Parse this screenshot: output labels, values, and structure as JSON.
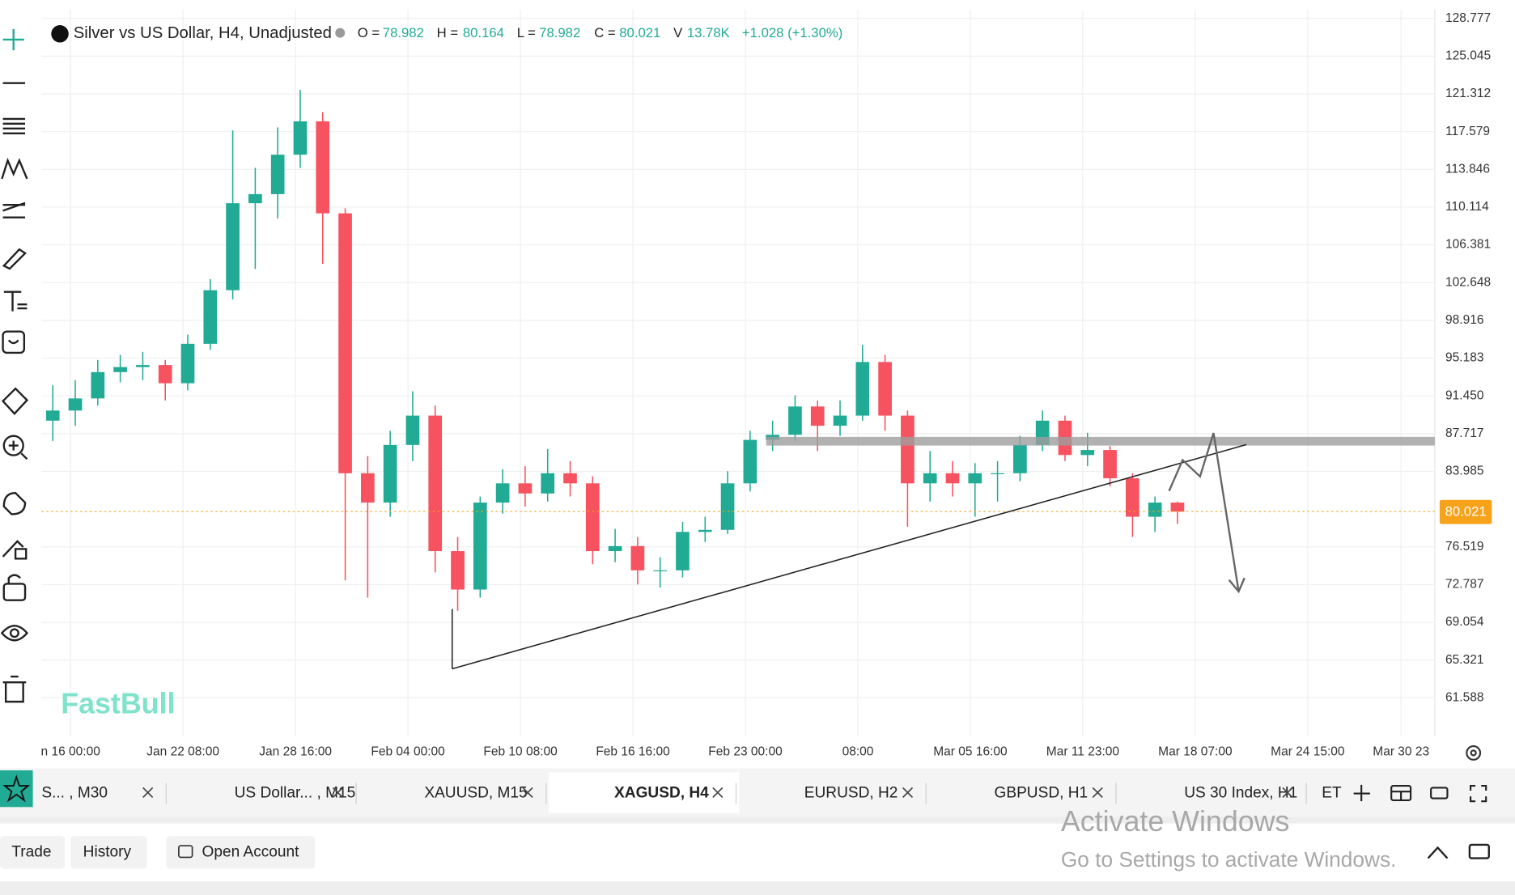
{
  "header": {
    "title": "Silver vs US Dollar, H4, Unadjusted",
    "open_label": "O =",
    "open": 78.982,
    "high_label": "H =",
    "high": 80.164,
    "low_label": "L =",
    "low": 78.982,
    "close_label": "C =",
    "close": 80.021,
    "volume_label": "V",
    "volume": "13.78K",
    "change": "+1.028 (+1.30%)"
  },
  "watermark": "FastBull",
  "chart_data": {
    "type": "candlestick",
    "up_color": "#22ab94",
    "down_color": "#f7525f",
    "grid": true,
    "open": [
      89.0,
      90.0,
      91.2,
      93.8,
      94.3,
      94.5,
      92.7,
      96.6,
      101.9,
      110.5,
      111.4,
      115.3,
      118.6,
      109.5,
      83.8,
      80.9,
      86.6,
      89.5,
      76.1,
      72.3,
      80.9,
      82.8,
      81.8,
      83.8,
      82.8,
      76.1,
      76.6,
      74.2,
      74.2,
      78.0,
      78.2,
      82.8,
      87.1,
      87.6,
      90.4,
      88.5,
      89.5,
      94.8,
      89.5,
      82.8,
      83.8,
      82.8,
      83.8,
      83.8,
      86.6,
      89.0,
      85.6,
      86.1,
      83.3,
      79.5,
      80.9
    ],
    "high": [
      92.5,
      93.0,
      95.0,
      95.5,
      95.8,
      95.0,
      97.5,
      103.0,
      117.7,
      114.0,
      118.0,
      121.7,
      119.5,
      110.0,
      85.5,
      88.0,
      91.9,
      90.5,
      77.5,
      81.5,
      84.2,
      84.5,
      86.2,
      85.0,
      83.5,
      78.3,
      77.5,
      75.5,
      79.0,
      79.5,
      84.0,
      88.0,
      89.0,
      91.5,
      91.0,
      91.0,
      96.5,
      95.5,
      90.0,
      86.0,
      85.0,
      84.8,
      85.0,
      87.5,
      90.0,
      89.5,
      87.8,
      86.5,
      83.8,
      81.5,
      81.0
    ],
    "low": [
      87.0,
      88.5,
      90.5,
      92.8,
      93.0,
      91.0,
      92.0,
      96.0,
      101.0,
      104.0,
      109.0,
      114.0,
      104.5,
      73.2,
      71.5,
      79.5,
      85.0,
      74.0,
      70.2,
      71.5,
      79.8,
      80.5,
      81.0,
      81.5,
      74.8,
      75.0,
      72.8,
      72.5,
      73.5,
      77.0,
      77.8,
      82.0,
      86.0,
      87.0,
      86.0,
      87.5,
      89.0,
      88.0,
      78.5,
      81.0,
      81.5,
      79.5,
      81.0,
      83.0,
      86.0,
      85.0,
      84.5,
      82.5,
      77.5,
      78.0,
      78.8
    ],
    "close": [
      90.0,
      91.2,
      93.8,
      94.3,
      94.5,
      92.7,
      96.6,
      101.9,
      110.5,
      111.4,
      115.3,
      118.6,
      109.5,
      83.8,
      80.9,
      86.6,
      89.5,
      76.1,
      72.3,
      80.9,
      82.8,
      81.8,
      83.8,
      82.8,
      76.1,
      76.6,
      74.2,
      74.2,
      78.0,
      78.2,
      82.8,
      87.1,
      87.6,
      90.4,
      88.5,
      89.5,
      94.8,
      89.5,
      82.8,
      83.8,
      82.8,
      83.8,
      83.8,
      86.6,
      89.0,
      85.6,
      86.1,
      83.3,
      79.5,
      80.9,
      80.0
    ],
    "last_price": 80.021,
    "ylim": [
      57.77,
      129.64
    ],
    "yticks": [
      128.777,
      125.045,
      121.312,
      117.579,
      113.846,
      110.114,
      106.381,
      102.648,
      98.916,
      95.183,
      {
        "value": 91.45,
        "label": "91.450"
      },
      87.717,
      83.985,
      76.519,
      72.787,
      69.054,
      65.321,
      61.588
    ],
    "xlim": [
      0,
      61.94
    ],
    "xticks": [
      {
        "value": 1.29,
        "label": "n 16 00:00"
      },
      {
        "value": 6.29,
        "label": "Jan 22 08:00"
      },
      {
        "value": 11.29,
        "label": "Jan 28 16:00"
      },
      {
        "value": 16.29,
        "label": "Feb 04 00:00"
      },
      {
        "value": 21.29,
        "label": "Feb 10 08:00"
      },
      {
        "value": 26.29,
        "label": "Feb 16 16:00"
      },
      {
        "value": 31.29,
        "label": "Feb 23 00:00"
      },
      {
        "value": 36.29,
        "label": "08:00"
      },
      {
        "value": 41.29,
        "label": "Mar 05 16:00"
      },
      {
        "value": 46.29,
        "label": "Mar 11 23:00"
      },
      {
        "value": 51.29,
        "label": "Mar 18 07:00"
      },
      {
        "value": 56.29,
        "label": "Mar 24 15:00"
      },
      {
        "value": 60.44,
        "label": "Mar 30 23"
      }
    ]
  },
  "tabs": [
    "S... , M30",
    "US Dollar... , M15",
    "XAUUSD, M15",
    "XAGUSD, H4",
    "EURUSD, H2",
    "GBPUSD, H1",
    "US 30 Index, H1"
  ],
  "timezone": "ET",
  "bottom_bar": {
    "trade": "Trade",
    "history": "History",
    "open_account": "Open Account"
  },
  "os_watermark": {
    "title": "Activate Windows",
    "subtitle": "Go to Settings to activate Windows."
  }
}
